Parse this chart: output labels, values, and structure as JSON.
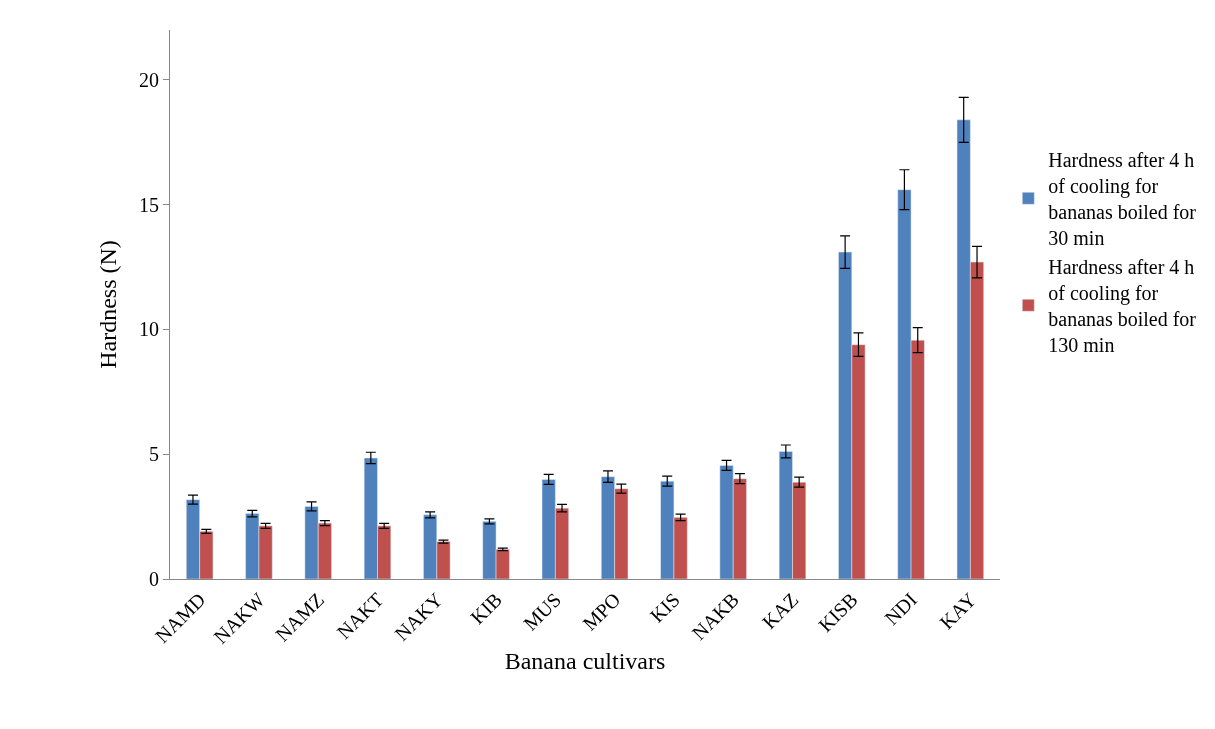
{
  "chart_data": {
    "type": "bar",
    "xlabel": "Banana cultivars",
    "ylabel": "Hardness (N)",
    "categories": [
      "NAMD",
      "NAKW",
      "NAMZ",
      "NAKT",
      "NAKY",
      "KIB",
      "MUS",
      "MPO",
      "KIS",
      "NAKB",
      "KAZ",
      "KISB",
      "NDI",
      "KAY"
    ],
    "series": [
      {
        "name": "Hardness after 4 h of cooling for bananas boiled for 30 min",
        "color": "#4f81bd",
        "values": [
          3.18,
          2.62,
          2.91,
          4.85,
          2.57,
          2.31,
          3.99,
          4.1,
          3.92,
          4.55,
          5.11,
          13.1,
          15.6,
          18.4
        ],
        "errors": [
          0.18,
          0.13,
          0.18,
          0.23,
          0.12,
          0.1,
          0.2,
          0.23,
          0.2,
          0.2,
          0.26,
          0.65,
          0.8,
          0.9
        ]
      },
      {
        "name": "Hardness after 4 h of cooling for bananas boiled for 130 min",
        "color": "#c0504d",
        "values": [
          1.91,
          2.13,
          2.24,
          2.13,
          1.5,
          1.19,
          2.84,
          3.62,
          2.47,
          4.02,
          3.88,
          9.39,
          9.57,
          12.7
        ],
        "errors": [
          0.08,
          0.1,
          0.1,
          0.1,
          0.06,
          0.05,
          0.15,
          0.18,
          0.13,
          0.2,
          0.2,
          0.47,
          0.5,
          0.63
        ]
      }
    ],
    "ylim": [
      0,
      22
    ],
    "yticks": [
      0,
      5,
      10,
      15,
      20
    ],
    "grid": false,
    "legend": "right"
  }
}
